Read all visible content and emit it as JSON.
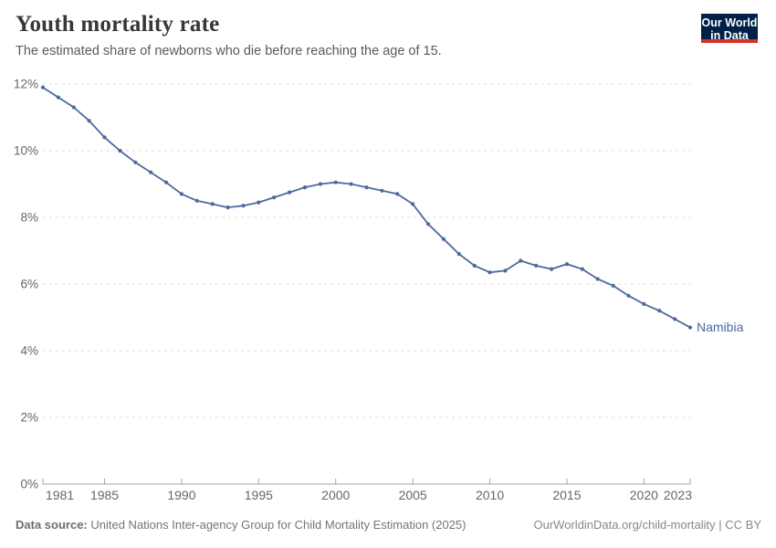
{
  "header": {
    "title": "Youth mortality rate",
    "subtitle": "The estimated share of newborns who die before reaching the age of 15.",
    "logo": {
      "line1": "Our World",
      "line2": "in Data"
    }
  },
  "chart_data": {
    "type": "line",
    "title": "Youth mortality rate",
    "xlabel": "",
    "ylabel": "",
    "xlim": [
      1981,
      2023
    ],
    "ylim": [
      0,
      12
    ],
    "yticks": [
      0,
      2,
      4,
      6,
      8,
      10,
      12
    ],
    "ytick_suffix": "%",
    "xticks": [
      1981,
      1985,
      1990,
      1995,
      2000,
      2005,
      2010,
      2015,
      2020,
      2023
    ],
    "grid": "horizontal-dashed",
    "legend_position": "end-of-line-label",
    "years": [
      1981,
      1982,
      1983,
      1984,
      1985,
      1986,
      1987,
      1988,
      1989,
      1990,
      1991,
      1992,
      1993,
      1994,
      1995,
      1996,
      1997,
      1998,
      1999,
      2000,
      2001,
      2002,
      2003,
      2004,
      2005,
      2006,
      2007,
      2008,
      2009,
      2010,
      2011,
      2012,
      2013,
      2014,
      2015,
      2016,
      2017,
      2018,
      2019,
      2020,
      2021,
      2022,
      2023
    ],
    "series": [
      {
        "name": "Namibia",
        "color": "#4C6A9C",
        "values": [
          11.9,
          11.6,
          11.3,
          10.9,
          10.4,
          10.0,
          9.65,
          9.35,
          9.05,
          8.7,
          8.5,
          8.4,
          8.3,
          8.35,
          8.45,
          8.6,
          8.75,
          8.9,
          9.0,
          9.05,
          9.0,
          8.9,
          8.8,
          8.7,
          8.4,
          7.8,
          7.35,
          6.9,
          6.55,
          6.35,
          6.4,
          6.7,
          6.55,
          6.45,
          6.6,
          6.45,
          6.15,
          5.95,
          5.65,
          5.4,
          5.2,
          4.95,
          4.7
        ]
      }
    ],
    "colors": {
      "gridline": "#dedede",
      "axis": "#a5a5a5",
      "tick_label": "#666666"
    }
  },
  "footer": {
    "source_label": "Data source:",
    "source_text": " United Nations Inter-agency Group for Child Mortality Estimation (2025)",
    "credit": "OurWorldinData.org/child-mortality | CC BY"
  }
}
